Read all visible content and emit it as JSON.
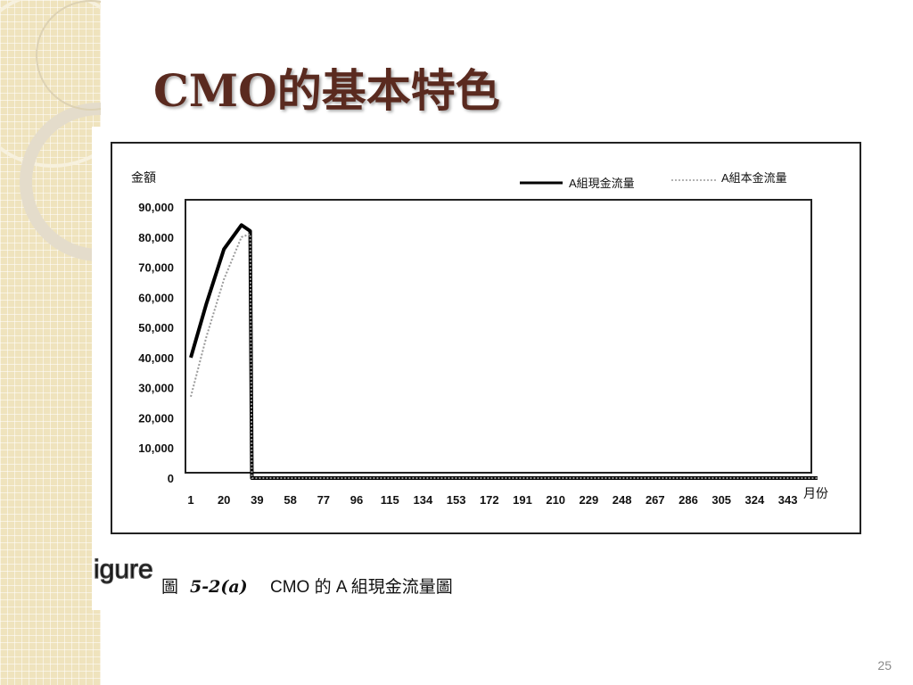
{
  "slide": {
    "title": "CMO的基本特色",
    "page_number": "25",
    "caption_fragment": "igure",
    "figure_caption_prefix": "圖",
    "figure_caption_number": "5-2(a)",
    "figure_caption_text": "CMO 的 A 組現金流量圖"
  },
  "colors": {
    "title": "#5a2a1f",
    "deco_background": "#efe3bd",
    "series_total": "#000000",
    "series_principal": "#9a9a9a"
  },
  "chart_data": {
    "type": "line",
    "ylabel": "金額",
    "xlabel": "月份",
    "ylim": [
      0,
      90000
    ],
    "yticks": [
      "0",
      "10,000",
      "20,000",
      "30,000",
      "40,000",
      "50,000",
      "60,000",
      "70,000",
      "80,000",
      "90,000"
    ],
    "categories": [
      "1",
      "20",
      "39",
      "58",
      "77",
      "96",
      "115",
      "134",
      "153",
      "172",
      "191",
      "210",
      "229",
      "248",
      "267",
      "286",
      "305",
      "324",
      "343"
    ],
    "x_range": [
      1,
      360
    ],
    "legend_position": "top-right",
    "series": [
      {
        "name": "A組現金流量",
        "style": "solid-thick",
        "points": [
          [
            1,
            40000
          ],
          [
            10,
            58000
          ],
          [
            20,
            76000
          ],
          [
            30,
            84000
          ],
          [
            35,
            82000
          ],
          [
            36,
            0
          ],
          [
            360,
            0
          ]
        ]
      },
      {
        "name": "A組本金流量",
        "style": "speckled-thin",
        "points": [
          [
            1,
            27000
          ],
          [
            10,
            47000
          ],
          [
            20,
            66000
          ],
          [
            30,
            80000
          ],
          [
            35,
            81000
          ],
          [
            36,
            0
          ],
          [
            360,
            0
          ]
        ]
      }
    ]
  }
}
